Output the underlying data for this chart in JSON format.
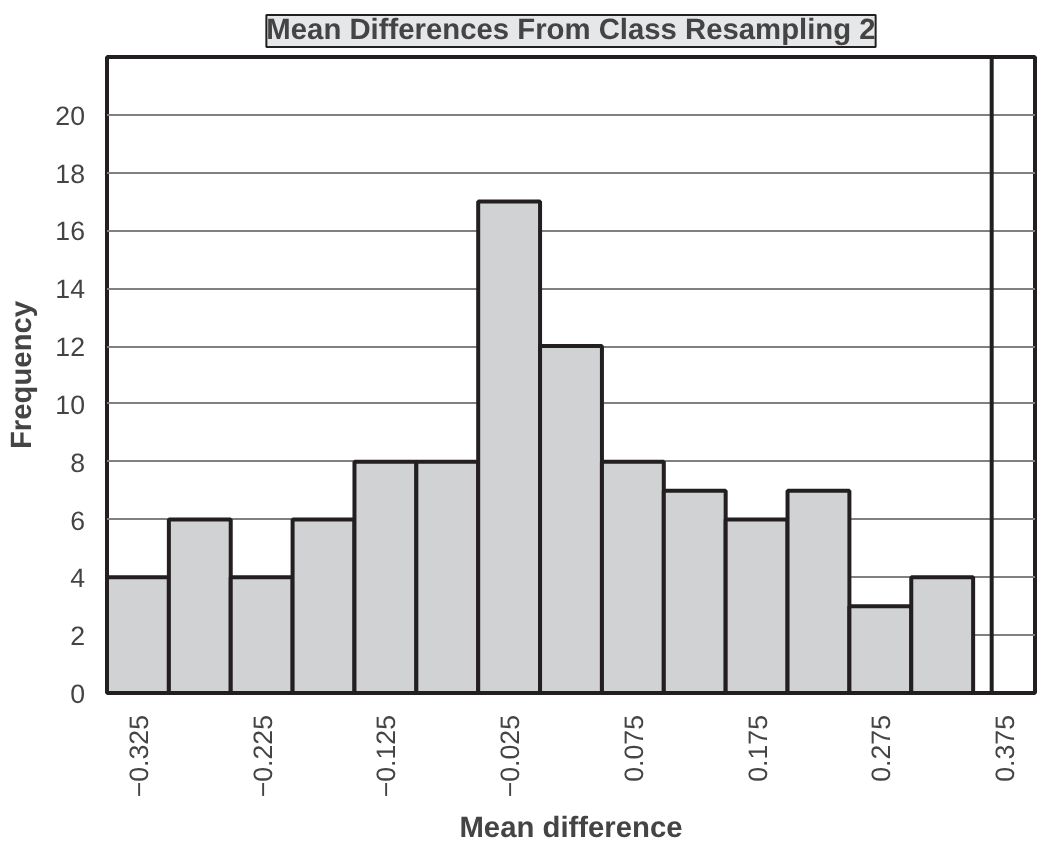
{
  "chart_data": {
    "type": "histogram",
    "title": "Mean Differences From Class Resampling 2",
    "xlabel": "Mean difference",
    "ylabel": "Frequency",
    "bins": [
      -0.35,
      -0.3,
      -0.25,
      -0.2,
      -0.15,
      -0.1,
      -0.05,
      0,
      0.05,
      0.1,
      0.15,
      0.2,
      0.25,
      0.3,
      0.35
    ],
    "values": [
      4,
      6,
      4,
      6,
      8,
      8,
      17,
      12,
      8,
      7,
      6,
      7,
      3,
      4
    ],
    "color": "#d1d2d4",
    "xlim": [
      -0.35,
      0.4
    ],
    "ylim": [
      0,
      22
    ],
    "xticks": [
      {
        "value": -0.325,
        "label": "−0.325"
      },
      {
        "value": -0.225,
        "label": "−0.225"
      },
      {
        "value": -0.125,
        "label": "−0.125"
      },
      {
        "value": -0.025,
        "label": "−0.025"
      },
      0.075,
      0.175,
      0.275,
      0.375
    ],
    "yticks": [
      0,
      2,
      4,
      6,
      8,
      10,
      12,
      14,
      16,
      18,
      20
    ],
    "grid": "y",
    "ref_lines": [
      {
        "axis": "x",
        "value": 0.365,
        "color": "#231f20"
      }
    ]
  }
}
